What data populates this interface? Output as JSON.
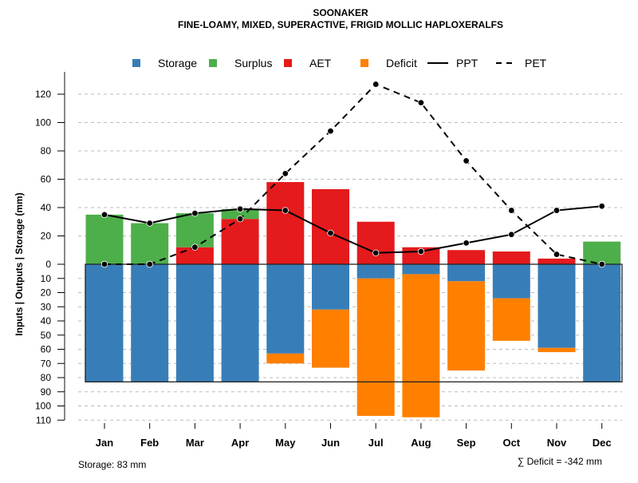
{
  "chart_data": {
    "type": "bar",
    "title": "SOONAKER",
    "subtitle": "FINE-LOAMY, MIXED, SUPERACTIVE, FRIGID MOLLIC HAPLOXERALFS",
    "ylabel": "Inputs | Outputs | Storage    (mm)",
    "xlabel": "",
    "categories": [
      "Jan",
      "Feb",
      "Mar",
      "Apr",
      "May",
      "Jun",
      "Jul",
      "Aug",
      "Sep",
      "Oct",
      "Nov",
      "Dec"
    ],
    "ylim_upper": [
      0,
      130
    ],
    "ylim_lower": [
      0,
      110
    ],
    "upper_ticks": [
      0,
      20,
      40,
      60,
      80,
      100,
      120
    ],
    "lower_ticks": [
      10,
      20,
      30,
      40,
      50,
      60,
      70,
      80,
      90,
      100,
      110
    ],
    "grid": true,
    "legend_position": "top",
    "legend": [
      "Storage",
      "Surplus",
      "AET",
      "Deficit",
      "PPT",
      "PET"
    ],
    "colors": {
      "Storage": "#377EB8",
      "Surplus": "#4DAF4A",
      "AET": "#E41A1C",
      "Deficit": "#FF7F00"
    },
    "series": [
      {
        "name": "AET",
        "values": [
          0,
          0,
          12,
          32,
          58,
          53,
          30,
          12,
          10,
          9,
          4,
          0
        ]
      },
      {
        "name": "Surplus",
        "values": [
          35,
          29,
          24,
          7,
          0,
          0,
          0,
          0,
          0,
          0,
          0,
          16
        ]
      },
      {
        "name": "Storage",
        "values": [
          83,
          83,
          83,
          83,
          63,
          32,
          10,
          7,
          12,
          24,
          59,
          83
        ]
      },
      {
        "name": "Deficit",
        "values": [
          0,
          0,
          0,
          0,
          7,
          41,
          97,
          101,
          63,
          30,
          3,
          0
        ]
      },
      {
        "name": "PPT",
        "values": [
          35,
          29,
          36,
          39,
          38,
          22,
          8,
          9,
          15,
          21,
          38,
          41
        ]
      },
      {
        "name": "PET",
        "values": [
          0,
          0,
          12,
          32,
          64,
          94,
          127,
          114,
          73,
          38,
          7,
          0
        ]
      }
    ],
    "storage_capacity": 83,
    "annotations": {
      "storage": "Storage: 83 mm",
      "deficit": "∑ Deficit = -342 mm"
    }
  }
}
